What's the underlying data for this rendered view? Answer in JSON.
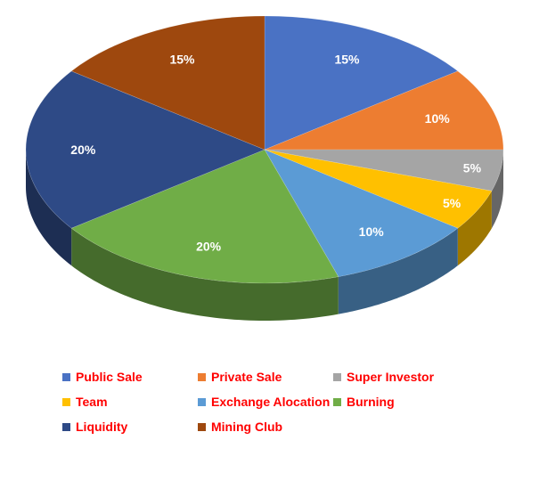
{
  "chart_data": {
    "type": "pie",
    "title": "",
    "style": "3d-exploded-none",
    "legend_position": "bottom",
    "categories": [
      "Public Sale",
      "Private Sale",
      "Super Investor",
      "Team",
      "Exchange Alocation",
      "Burning",
      "Liquidity",
      "Mining Club"
    ],
    "values": [
      15,
      10,
      5,
      5,
      10,
      20,
      20,
      15
    ],
    "data_labels": [
      "15%",
      "10%",
      "5%",
      "5%",
      "10%",
      "20%",
      "20%",
      "15%"
    ],
    "colors": [
      "#4a72c4",
      "#ed7d31",
      "#a5a5a5",
      "#ffc000",
      "#5b9bd5",
      "#70ad47",
      "#2e4a86",
      "#9e480e"
    ],
    "label_color": "#ffffff",
    "legend_text_color": "#ff0000"
  }
}
